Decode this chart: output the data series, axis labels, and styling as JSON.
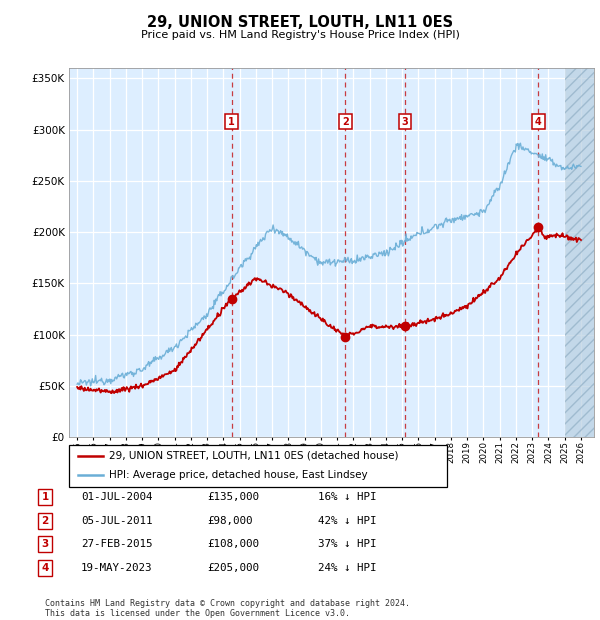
{
  "title": "29, UNION STREET, LOUTH, LN11 0ES",
  "subtitle": "Price paid vs. HM Land Registry's House Price Index (HPI)",
  "ylim": [
    0,
    360000
  ],
  "yticks": [
    0,
    50000,
    100000,
    150000,
    200000,
    250000,
    300000,
    350000
  ],
  "xlim_start": 1994.5,
  "xlim_end": 2026.8,
  "background_color": "#ffffff",
  "plot_bg_color": "#ddeeff",
  "grid_color": "#ffffff",
  "hpi_color": "#6aaed6",
  "price_color": "#c00000",
  "hatch_color": "#b8cfe0",
  "transactions": [
    {
      "label": "1",
      "date_num": 2004.5,
      "price": 135000,
      "date_str": "01-JUL-2004"
    },
    {
      "label": "2",
      "date_num": 2011.51,
      "price": 98000,
      "date_str": "05-JUL-2011"
    },
    {
      "label": "3",
      "date_num": 2015.16,
      "price": 108000,
      "date_str": "27-FEB-2015"
    },
    {
      "label": "4",
      "date_num": 2023.38,
      "price": 205000,
      "date_str": "19-MAY-2023"
    }
  ],
  "legend_label_price": "29, UNION STREET, LOUTH, LN11 0ES (detached house)",
  "legend_label_hpi": "HPI: Average price, detached house, East Lindsey",
  "footer": "Contains HM Land Registry data © Crown copyright and database right 2024.\nThis data is licensed under the Open Government Licence v3.0.",
  "table_rows": [
    [
      "1",
      "01-JUL-2004",
      "£135,000",
      "16% ↓ HPI"
    ],
    [
      "2",
      "05-JUL-2011",
      "£98,000",
      "42% ↓ HPI"
    ],
    [
      "3",
      "27-FEB-2015",
      "£108,000",
      "37% ↓ HPI"
    ],
    [
      "4",
      "19-MAY-2023",
      "£205,000",
      "24% ↓ HPI"
    ]
  ]
}
